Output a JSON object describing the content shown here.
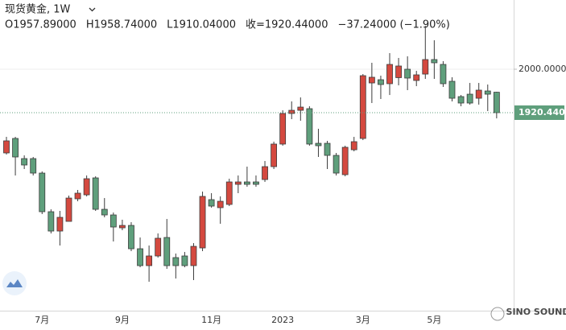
{
  "header": {
    "symbol": "现货黄金, 1W",
    "ohlc": [
      "O1957.89000",
      "H1958.74000",
      "L1910.04000",
      "收=1920.44000",
      "−37.24000 (−1.90%)"
    ]
  },
  "watermark": "SINO SOUND",
  "chart_data": {
    "type": "candlestick",
    "categories": [
      null,
      null,
      null,
      null,
      "7月",
      null,
      null,
      null,
      null,
      null,
      null,
      null,
      null,
      "9月",
      null,
      null,
      null,
      null,
      null,
      null,
      null,
      null,
      null,
      "11月",
      null,
      null,
      null,
      null,
      null,
      null,
      null,
      "2023",
      null,
      null,
      null,
      null,
      null,
      null,
      null,
      null,
      "3月",
      null,
      null,
      null,
      null,
      null,
      null,
      null,
      "5月",
      null,
      null,
      null,
      null,
      null,
      null,
      null
    ],
    "open": [
      1846.8,
      1873.3,
      1836.4,
      1836.4,
      1809.9,
      1739.2,
      1703.8,
      1721.5,
      1762.8,
      1770.1,
      1801.1,
      1743.6,
      1733.3,
      1709.7,
      1714.1,
      1671.4,
      1640.5,
      1658.2,
      1692.0,
      1655.2,
      1658.2,
      1640.5,
      1672.9,
      1761.3,
      1746.6,
      1752.5,
      1789.3,
      1793.7,
      1793.7,
      1798.1,
      1821.7,
      1863.0,
      1919.0,
      1924.8,
      1927.8,
      1864.4,
      1864.4,
      1842.3,
      1807.0,
      1852.6,
      1873.3,
      1974.9,
      1980.8,
      1973.5,
      1984.6,
      2000.0,
      1979.4,
      1991.1,
      2017.7,
      2008.8,
      1977.9,
      1949.9,
      1954.3,
      1946.9,
      1960.2,
      1957.89
    ],
    "high": [
      1876.2,
      1876.2,
      1842.3,
      1839.4,
      1812.9,
      1743.6,
      1740.7,
      1768.7,
      1779.0,
      1805.5,
      1804.0,
      1764.2,
      1737.7,
      1724.5,
      1720.0,
      1692.0,
      1677.3,
      1699.4,
      1725.9,
      1662.6,
      1665.5,
      1681.7,
      1776.0,
      1773.1,
      1767.2,
      1799.6,
      1805.5,
      1821.7,
      1805.5,
      1832.0,
      1867.4,
      1924.8,
      1941.1,
      1948.4,
      1932.2,
      1891.0,
      1868.9,
      1846.8,
      1860.0,
      1876.2,
      1991.1,
      2011.8,
      1988.2,
      2029.5,
      2020.6,
      2023.6,
      1997.0,
      2079.6,
      2053.0,
      2014.7,
      1985.3,
      1952.8,
      1974.9,
      1974.9,
      1972.0,
      1958.74
    ],
    "low": [
      1843.8,
      1805.5,
      1817.3,
      1805.5,
      1734.8,
      1699.4,
      1677.3,
      1721.5,
      1758.3,
      1767.2,
      1740.7,
      1728.9,
      1684.7,
      1705.3,
      1667.0,
      1637.5,
      1611.0,
      1655.2,
      1634.6,
      1616.9,
      1637.5,
      1614.0,
      1667.0,
      1746.6,
      1717.1,
      1749.5,
      1773.1,
      1784.9,
      1784.9,
      1793.7,
      1817.3,
      1860.0,
      1908.6,
      1905.7,
      1860.0,
      1839.4,
      1817.3,
      1805.5,
      1804.0,
      1849.7,
      1870.3,
      1938.1,
      1945.5,
      1952.8,
      1970.5,
      1961.7,
      1969.0,
      1982.3,
      1982.3,
      1967.6,
      1941.1,
      1932.2,
      1935.2,
      1935.2,
      1923.4,
      1910.04
    ],
    "close": [
      1868.9,
      1839.4,
      1824.7,
      1809.9,
      1739.2,
      1703.8,
      1728.9,
      1764.2,
      1773.1,
      1799.6,
      1743.6,
      1733.3,
      1711.2,
      1714.1,
      1671.4,
      1640.5,
      1658.2,
      1690.6,
      1640.5,
      1640.5,
      1640.5,
      1675.8,
      1767.2,
      1749.5,
      1758.3,
      1793.7,
      1793.7,
      1789.3,
      1789.3,
      1821.7,
      1863.0,
      1919.0,
      1924.8,
      1930.7,
      1863.0,
      1860.0,
      1842.3,
      1809.9,
      1857.1,
      1867.4,
      1988.2,
      1985.3,
      1972.0,
      2008.8,
      2005.9,
      1983.8,
      1989.7,
      2017.7,
      2011.8,
      1973.5,
      1946.9,
      1938.1,
      1938.1,
      1961.7,
      1954.3,
      1920.44
    ],
    "ylim": [
      1559.5,
      2126.7
    ],
    "yticks": [
      {
        "value": 2000,
        "label": "2000.00000"
      }
    ],
    "last_price": {
      "value": 1920.44,
      "label": "1920.44000"
    },
    "up_color": "#d4493f",
    "down_color": "#5f9f7c",
    "grid": true
  }
}
